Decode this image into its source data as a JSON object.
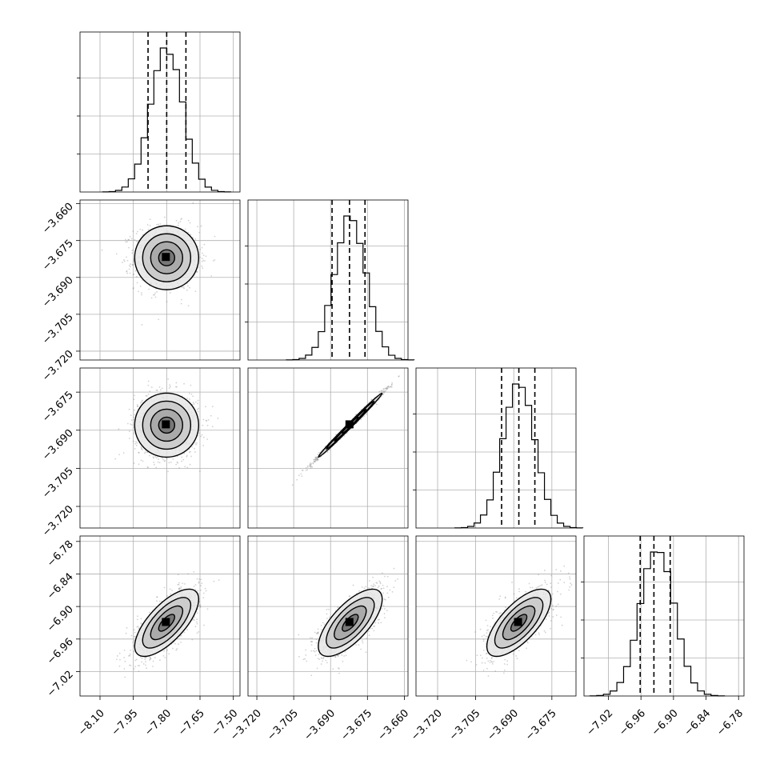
{
  "chart_data": {
    "type": "corner",
    "parameters": [
      "",
      "",
      "",
      ""
    ],
    "ranges": [
      [
        -8.19,
        -7.47
      ],
      [
        -3.7236,
        -3.6585
      ],
      [
        -3.7285,
        -3.6655
      ],
      [
        -7.065,
        -6.77
      ]
    ],
    "ticks": [
      {
        "values": [
          -8.1,
          -7.95,
          -7.8,
          -7.65,
          -7.5
        ],
        "labels": [
          "−8.10",
          "−7.95",
          "−7.80",
          "−7.65",
          "−7.50"
        ]
      },
      {
        "values": [
          -3.72,
          -3.705,
          -3.69,
          -3.675,
          -3.66
        ],
        "labels": [
          "−3.720",
          "−3.705",
          "−3.690",
          "−3.675",
          "−3.660"
        ]
      },
      {
        "values": [
          -3.72,
          -3.705,
          -3.69,
          -3.675
        ],
        "labels": [
          "−3.720",
          "−3.705",
          "−3.690",
          "−3.675"
        ]
      },
      {
        "values": [
          -7.02,
          -6.96,
          -6.9,
          -6.84,
          -6.78
        ],
        "labels": [
          "−7.02",
          "−6.96",
          "−6.90",
          "−6.84",
          "−6.78"
        ]
      }
    ],
    "marginals": [
      {
        "param": 0,
        "mean": -7.8,
        "sd": 0.072,
        "quantiles": [
          -7.8838,
          -7.7999,
          -7.7133
        ],
        "hist_max": 1.0
      },
      {
        "param": 1,
        "mean": -3.682,
        "sd": 0.0065,
        "quantiles": [
          -3.6894,
          -3.6823,
          -3.676
        ],
        "hist_max": 1.0
      },
      {
        "param": 2,
        "mean": -3.688,
        "sd": 0.0063,
        "quantiles": [
          -3.6948,
          -3.688,
          -3.6817
        ],
        "hist_max": 1.0
      },
      {
        "param": 3,
        "mean": -6.93,
        "sd": 0.031,
        "quantiles": [
          -6.9614,
          -6.9361,
          -6.9061
        ],
        "hist_max": 1.0
      }
    ],
    "joint": [
      {
        "x": 0,
        "y": 1,
        "corr": 0.0
      },
      {
        "x": 0,
        "y": 2,
        "corr": 0.0
      },
      {
        "x": 1,
        "y": 2,
        "corr": 0.995
      },
      {
        "x": 0,
        "y": 3,
        "corr": 0.7
      },
      {
        "x": 1,
        "y": 3,
        "corr": 0.7
      },
      {
        "x": 2,
        "y": 3,
        "corr": 0.7
      }
    ],
    "contour_levels": [
      "0.5-sigma",
      "1-sigma",
      "1.5-sigma",
      "2-sigma"
    ],
    "show_titles": false,
    "grid": true,
    "colors": {
      "line": "#000000",
      "grid": "#b0b0b0",
      "points": "#7f7f7f"
    }
  }
}
